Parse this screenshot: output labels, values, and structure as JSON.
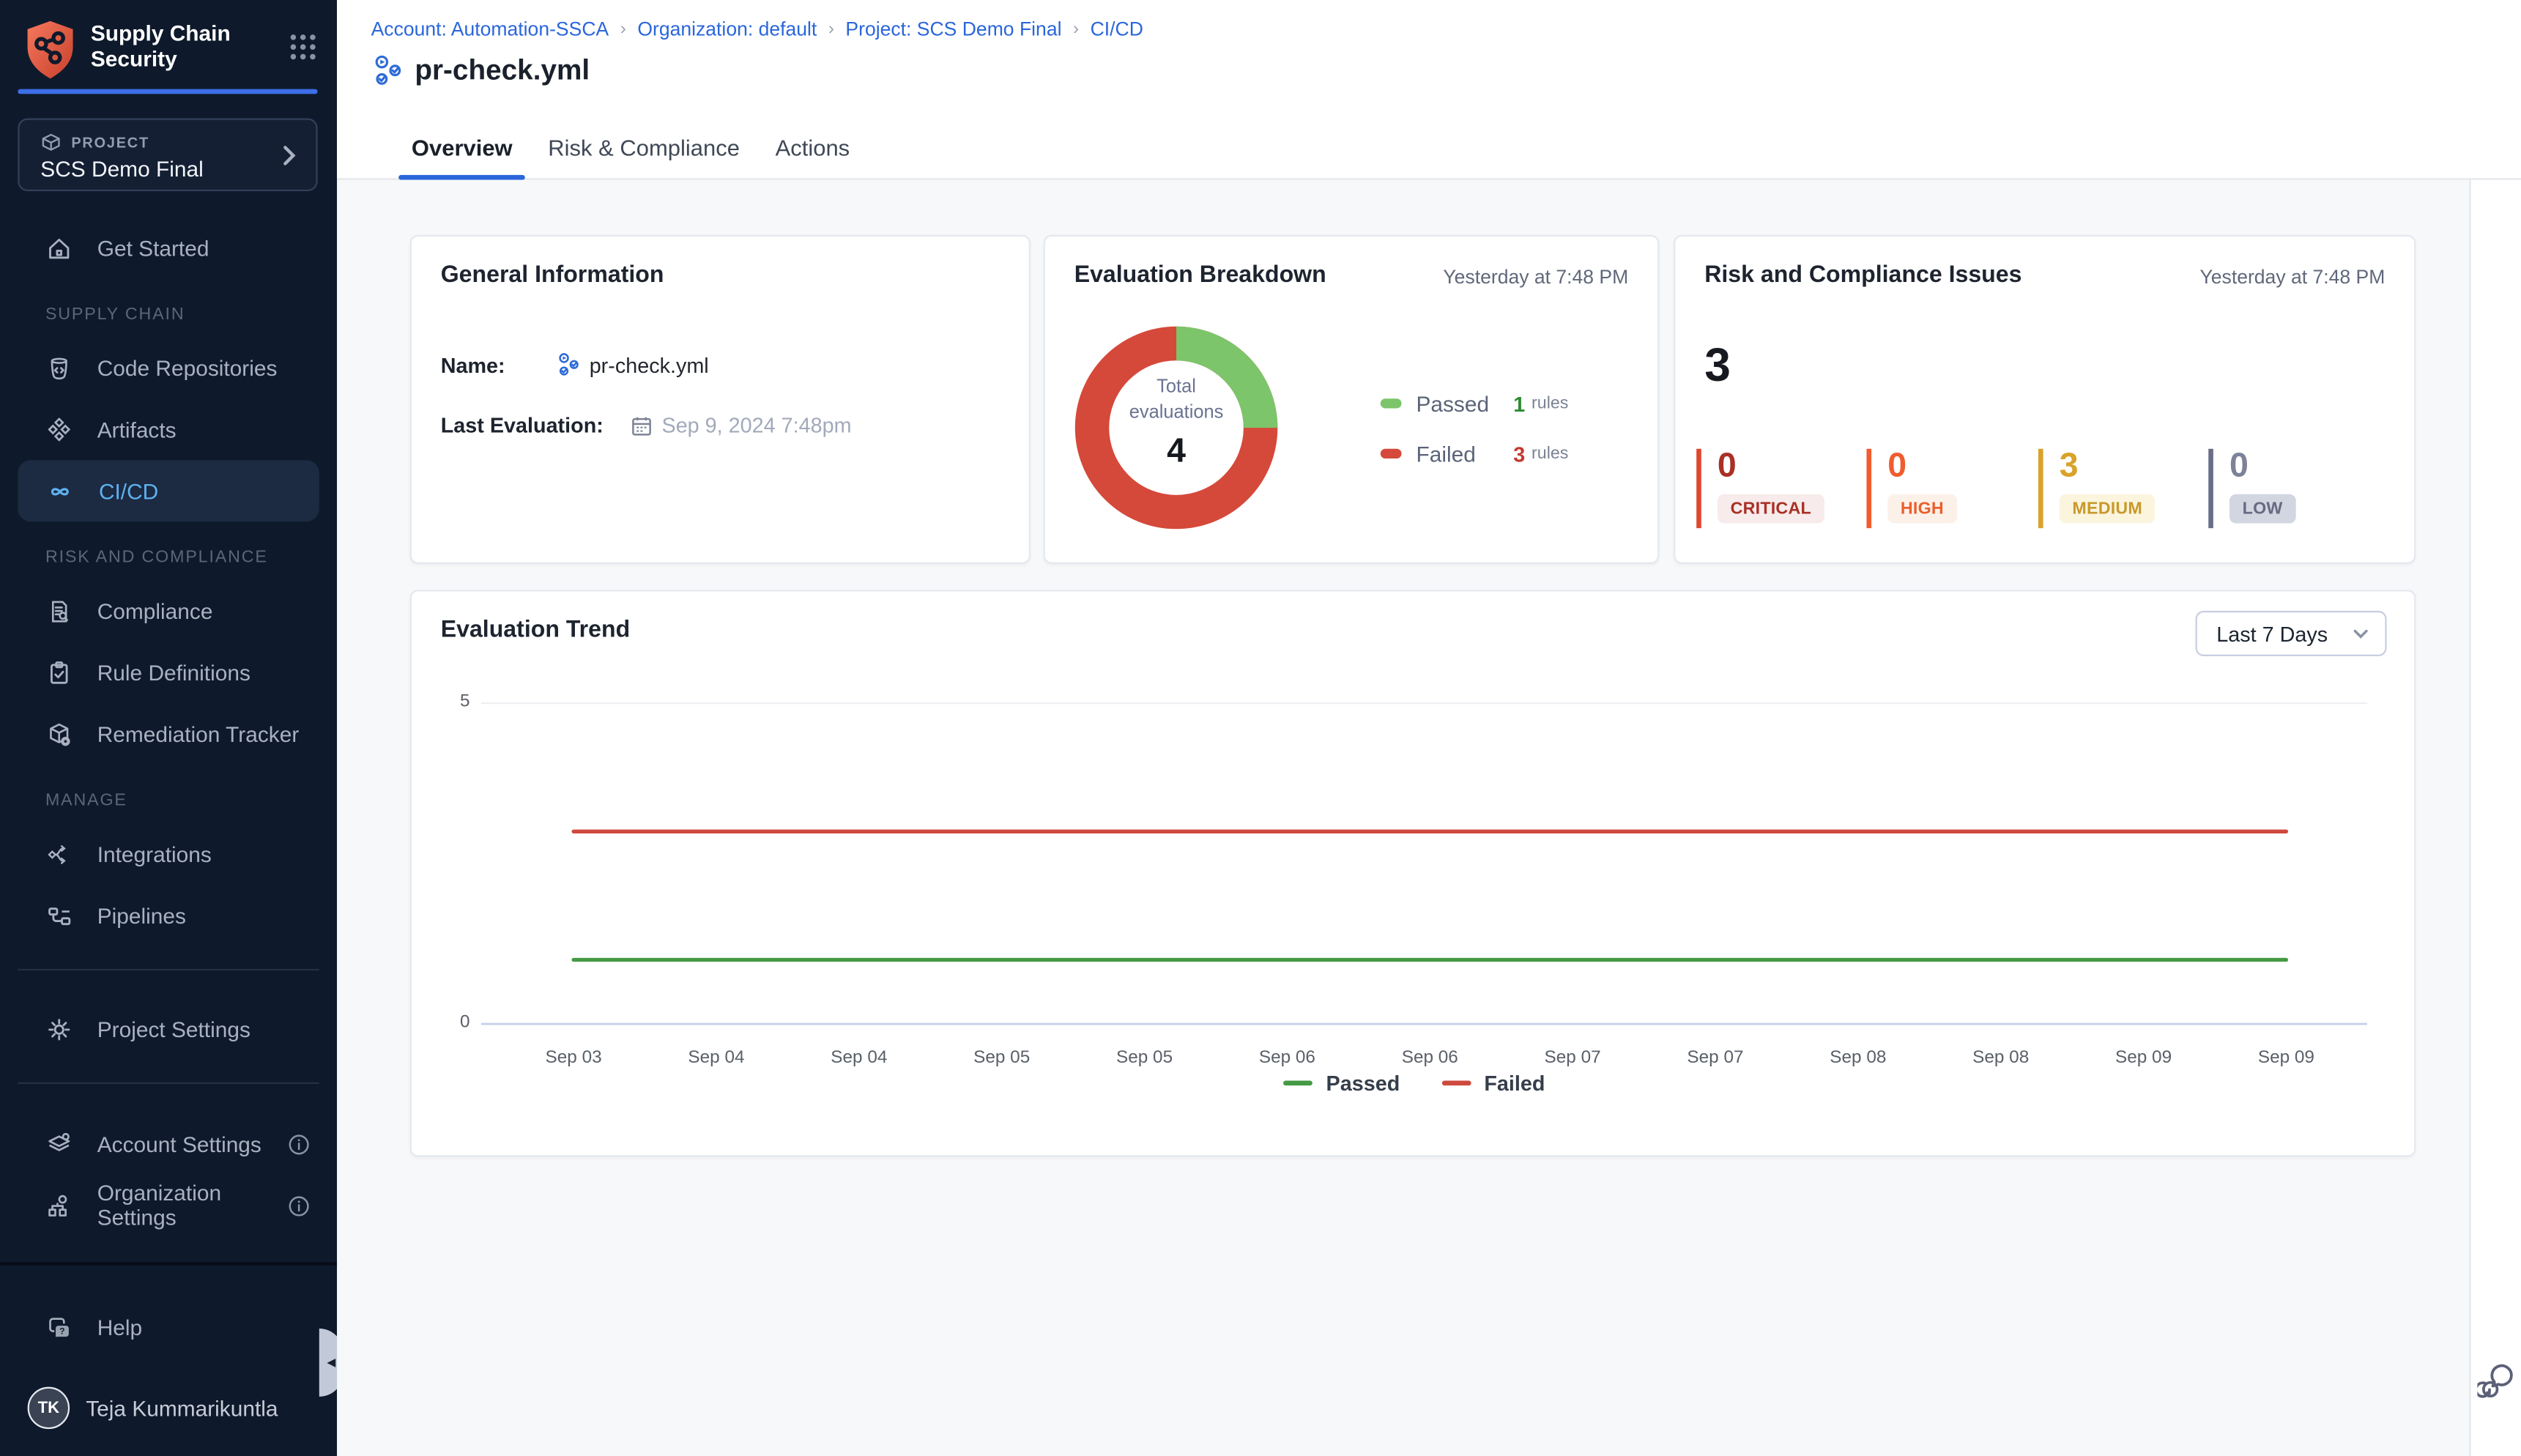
{
  "app": {
    "product_line1": "Supply Chain",
    "product_line2": "Security"
  },
  "sidebar": {
    "project_selector": {
      "kicker": "PROJECT",
      "name": "SCS Demo Final"
    },
    "get_started": "Get Started",
    "sections": [
      {
        "heading": "SUPPLY CHAIN",
        "items": [
          "Code Repositories",
          "Artifacts",
          "CI/CD"
        ]
      },
      {
        "heading": "RISK AND COMPLIANCE",
        "items": [
          "Compliance",
          "Rule Definitions",
          "Remediation Tracker"
        ]
      },
      {
        "heading": "MANAGE",
        "items": [
          "Integrations",
          "Pipelines"
        ]
      }
    ],
    "project_settings": "Project Settings",
    "account_settings": "Account Settings",
    "organization_settings": "Organization Settings",
    "help": "Help",
    "user": {
      "initials": "TK",
      "name": "Teja Kummarikuntla"
    }
  },
  "header": {
    "breadcrumb": {
      "account": "Account: Automation-SSCA",
      "org": "Organization: default",
      "project": "Project: SCS Demo Final",
      "module": "CI/CD"
    },
    "page_title": "pr-check.yml",
    "tabs": {
      "overview": "Overview",
      "risk": "Risk & Compliance",
      "actions": "Actions"
    }
  },
  "cards": {
    "general": {
      "title": "General Information",
      "name_label": "Name:",
      "name_value": "pr-check.yml",
      "last_evaluation_label": "Last Evaluation:",
      "last_evaluation_value": "Sep 9, 2024 7:48pm"
    },
    "evaluation": {
      "title": "Evaluation Breakdown",
      "timestamp": "Yesterday at 7:48 PM"
    },
    "risk": {
      "title": "Risk and Compliance Issues",
      "timestamp": "Yesterday at 7:48 PM",
      "total": "3",
      "severities": [
        {
          "label": "CRITICAL",
          "value": "0",
          "bar_color": "#E0472F",
          "number_color": "#A93026",
          "badge_bg": "#F7ECEB",
          "badge_text": "#A93026"
        },
        {
          "label": "HIGH",
          "value": "0",
          "bar_color": "#F05C2E",
          "number_color": "#F05C2E",
          "badge_bg": "#FCF1E9",
          "badge_text": "#EB5F2D"
        },
        {
          "label": "MEDIUM",
          "value": "3",
          "bar_color": "#D8A328",
          "number_color": "#D8A328",
          "badge_bg": "#FBF5DE",
          "badge_text": "#C9992A"
        },
        {
          "label": "LOW",
          "value": "0",
          "bar_color": "#696E86",
          "number_color": "#7D8298",
          "badge_bg": "#D2D6E1",
          "badge_text": "#656B81"
        }
      ]
    }
  },
  "trend": {
    "title": "Evaluation Trend",
    "range_label": "Last 7 Days"
  },
  "chart_data": [
    {
      "type": "pie",
      "subtype": "donut",
      "title": "Evaluation Breakdown",
      "labels": [
        "Passed",
        "Failed"
      ],
      "values": [
        1,
        3
      ],
      "unit": "rules",
      "colors": [
        "#7CC56A",
        "#D5493A"
      ],
      "value_colors": [
        "#2E8B33",
        "#C5392E"
      ],
      "center_label": "Total evaluations",
      "center_value": "4",
      "timestamp": "Yesterday at 7:48 PM"
    },
    {
      "type": "line",
      "title": "Evaluation Trend",
      "x": [
        "Sep 03",
        "Sep 04",
        "Sep 04",
        "Sep 05",
        "Sep 05",
        "Sep 06",
        "Sep 06",
        "Sep 07",
        "Sep 07",
        "Sep 08",
        "Sep 08",
        "Sep 09",
        "Sep 09"
      ],
      "series": [
        {
          "name": "Passed",
          "color": "#449A44",
          "values": [
            1,
            1,
            1,
            1,
            1,
            1,
            1,
            1,
            1,
            1,
            1,
            1,
            1
          ]
        },
        {
          "name": "Failed",
          "color": "#CE4A3E",
          "values": [
            3,
            3,
            3,
            3,
            3,
            3,
            3,
            3,
            3,
            3,
            3,
            3,
            3
          ]
        }
      ],
      "ylim": [
        0,
        5
      ],
      "yticks": [
        "0",
        "5"
      ],
      "grid": "horizontal",
      "legend_position": "bottom"
    }
  ]
}
